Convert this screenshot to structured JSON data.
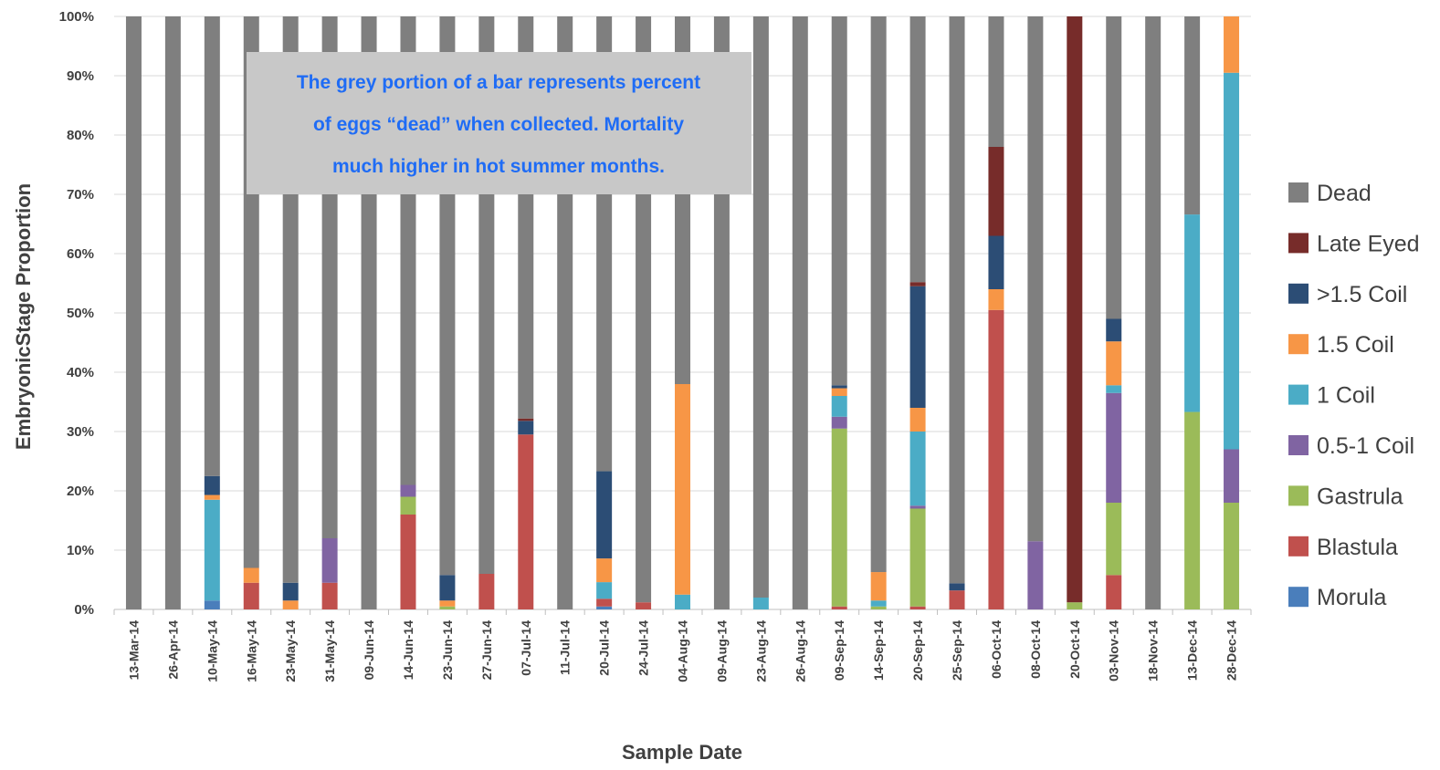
{
  "chart_data": {
    "type": "bar",
    "stacked": true,
    "xlabel": "Sample Date",
    "ylabel": "EmbryonicStage Proportion",
    "ylim": [
      0,
      100
    ],
    "yticks": [
      "0%",
      "10%",
      "20%",
      "30%",
      "40%",
      "50%",
      "60%",
      "70%",
      "80%",
      "90%",
      "100%"
    ],
    "grid": true,
    "legend_position": "right",
    "categories": [
      "13-Mar-14",
      "26-Apr-14",
      "10-May-14",
      "16-May-14",
      "23-May-14",
      "31-May-14",
      "09-Jun-14",
      "14-Jun-14",
      "23-Jun-14",
      "27-Jun-14",
      "07-Jul-14",
      "11-Jul-14",
      "20-Jul-14",
      "24-Jul-14",
      "04-Aug-14",
      "09-Aug-14",
      "23-Aug-14",
      "26-Aug-14",
      "09-Sep-14",
      "14-Sep-14",
      "20-Sep-14",
      "25-Sep-14",
      "06-Oct-14",
      "08-Oct-14",
      "20-Oct-14",
      "03-Nov-14",
      "18-Nov-14",
      "13-Dec-14",
      "28-Dec-14"
    ],
    "series": [
      {
        "name": "Morula",
        "color": "#4a7ebb",
        "values": [
          0,
          0,
          1.5,
          0,
          0,
          0,
          0,
          0,
          0,
          0,
          0,
          0,
          0.5,
          0,
          0,
          0,
          0,
          0,
          0,
          0,
          0,
          0,
          0,
          0,
          0,
          0,
          0,
          0,
          0
        ]
      },
      {
        "name": "Blastula",
        "color": "#c0504d",
        "values": [
          0,
          0,
          0,
          4.5,
          0,
          4.5,
          0,
          16,
          0,
          6,
          29.5,
          0,
          1.3,
          1.2,
          0,
          0,
          0,
          0,
          0.5,
          0,
          0.5,
          3.2,
          50.5,
          0,
          0,
          5.8,
          0,
          0,
          0
        ]
      },
      {
        "name": "Gastrula",
        "color": "#9bbb59",
        "values": [
          0,
          0,
          0,
          0,
          0,
          0,
          0,
          3,
          0.5,
          0,
          0,
          0,
          0,
          0,
          0,
          0,
          0,
          0,
          30,
          0.5,
          16.5,
          0,
          0,
          0,
          1.2,
          12.2,
          0,
          33.3,
          18
        ]
      },
      {
        "name": "0.5-1 Coil",
        "color": "#8064a2",
        "values": [
          0,
          0,
          0,
          0,
          0,
          7.5,
          0,
          2,
          0,
          0,
          0,
          0,
          0,
          0,
          0,
          0,
          0,
          0,
          2,
          0,
          0.5,
          0,
          0,
          11.5,
          0,
          18.5,
          0,
          0,
          9
        ]
      },
      {
        "name": "1 Coil",
        "color": "#4bacc6",
        "values": [
          0,
          0,
          17,
          0,
          0,
          0,
          0,
          0,
          0,
          0,
          0,
          0,
          2.8,
          0,
          2.5,
          0,
          2,
          0,
          3.5,
          1,
          12.5,
          0,
          0,
          0,
          0,
          1.3,
          0,
          33.3,
          63.5
        ]
      },
      {
        "name": "1.5 Coil",
        "color": "#f79646",
        "values": [
          0,
          0,
          0.8,
          2.5,
          1.5,
          0,
          0,
          0,
          1,
          0,
          0,
          0,
          4,
          0,
          35.5,
          0,
          0,
          0,
          1.3,
          4.8,
          4,
          0,
          3.5,
          0,
          0,
          7.4,
          0,
          0,
          9.5
        ]
      },
      {
        "name": ">1.5 Coil",
        "color": "#2c4d75",
        "values": [
          0,
          0,
          3.2,
          0,
          3,
          0,
          0,
          0,
          4.3,
          0,
          2.3,
          0,
          14.7,
          0,
          0,
          0,
          0,
          0,
          0.5,
          0,
          20.5,
          1.2,
          9,
          0,
          0,
          3.8,
          0,
          0,
          0
        ]
      },
      {
        "name": "Late Eyed",
        "color": "#772c2a",
        "values": [
          0,
          0,
          0,
          0,
          0,
          0,
          0,
          0,
          0,
          0,
          0.4,
          0,
          0,
          0,
          0,
          0,
          0,
          0,
          0,
          0,
          0.7,
          0,
          15,
          0,
          98.8,
          0,
          0,
          0,
          0
        ]
      },
      {
        "name": "Dead",
        "color": "#7f7f7f",
        "values": [
          100,
          100,
          77.5,
          93,
          95.5,
          88,
          100,
          79,
          94.2,
          94,
          67.8,
          100,
          76.7,
          98.8,
          62,
          100,
          98,
          100,
          62.2,
          93.7,
          44.8,
          95.6,
          22,
          88.5,
          0,
          51,
          100,
          33.4,
          0
        ]
      }
    ],
    "annotation": {
      "lines": [
        "The grey portion of a bar represents percent",
        "of eggs “dead” when collected.   Mortality",
        "much higher in hot summer months."
      ],
      "text_color": "#1f6cf5",
      "box_color": "#c8c8c8"
    },
    "legend_order": [
      "Dead",
      "Late Eyed",
      ">1.5 Coil",
      "1.5 Coil",
      "1 Coil",
      "0.5-1 Coil",
      "Gastrula",
      "Blastula",
      "Morula"
    ]
  }
}
